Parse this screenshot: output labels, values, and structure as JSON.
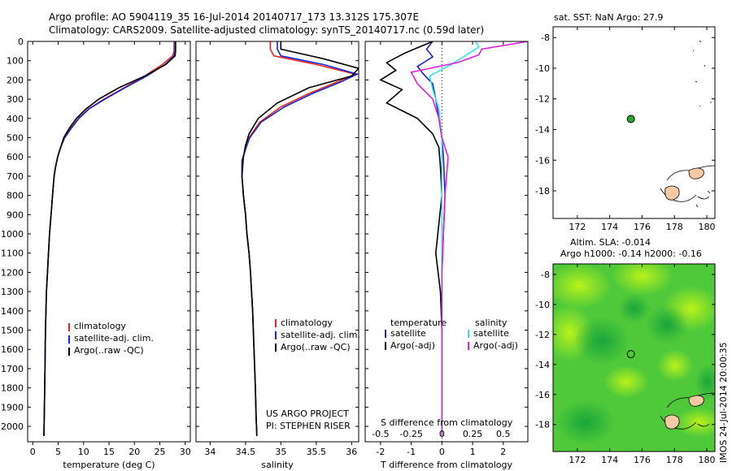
{
  "header": {
    "line1": "Argo profile: AO 5904119_35 16-Jul-2014 20140717_173 13.312S 175.307E",
    "line2": "Climatology: CARS2009. Satellite-adjusted climatology: synTS_20140717.nc (0.59d later)"
  },
  "colors": {
    "climatology": "#e8271e",
    "satellite": "#1426d8",
    "argo": "#000000",
    "sal_satellite": "#33e6ea",
    "sal_argo": "#e020e0",
    "land": "#f6c8a4",
    "map_marker": "#2aa52a"
  },
  "credits": {
    "project": "US ARGO PROJECT",
    "pi": "PI: STEPHEN RISER"
  },
  "timestamp": "IMOS 24-Jul-2014 20:00:35",
  "maps": {
    "sst_title": "sat. SST: NaN Argo: 27.9",
    "sla_title1": "Altim. SLA: -0.014",
    "sla_title2": "Argo h1000: -0.14 h2000: -0.16",
    "x_ticks": [
      "172",
      "174",
      "176",
      "178",
      "180"
    ],
    "y_ticks": [
      "-8",
      "-10",
      "-12",
      "-14",
      "-16",
      "-18"
    ],
    "argo_position": {
      "lon": 175.307,
      "lat": -13.312
    }
  },
  "chart_data": [
    {
      "type": "line",
      "panel": "temperature",
      "xlabel": "temperature (deg C)",
      "ylabel": "",
      "xlim": [
        -1,
        31
      ],
      "ylim": [
        2080,
        0
      ],
      "x_ticks": [
        "0",
        "5",
        "10",
        "15",
        "20",
        "25",
        "30"
      ],
      "y_ticks": [
        "0",
        "100",
        "200",
        "300",
        "400",
        "500",
        "600",
        "700",
        "800",
        "900",
        "1000",
        "1100",
        "1200",
        "1300",
        "1400",
        "1500",
        "1600",
        "1700",
        "1800",
        "1900",
        "2000"
      ],
      "legend": [
        "climatology",
        "satellite-adj. clim.",
        "Argo(..raw -QC)"
      ],
      "series": [
        {
          "name": "climatology",
          "x": [
            27.8,
            27.8,
            27.5,
            25.5,
            22,
            18,
            14,
            11,
            9,
            7.5,
            6.2,
            5.5,
            4.9,
            4.5,
            4.2,
            3.9,
            3.6,
            3.3,
            3.1,
            2.9,
            2.7,
            2.6,
            2.5,
            2.4,
            2.3,
            2.2
          ],
          "y": [
            0,
            50,
            75,
            120,
            180,
            240,
            300,
            350,
            400,
            450,
            500,
            550,
            600,
            650,
            700,
            800,
            900,
            1000,
            1100,
            1200,
            1300,
            1400,
            1500,
            1700,
            1900,
            2050
          ]
        },
        {
          "name": "satellite-adj. clim.",
          "x": [
            28.0,
            28.0,
            27.8,
            26,
            22.4,
            18.2,
            14.2,
            11.1,
            9.1,
            7.6,
            6.3,
            5.5,
            4.9,
            4.5,
            4.2,
            3.9,
            3.6,
            3.3,
            3.1,
            2.9,
            2.7,
            2.6,
            2.5,
            2.4,
            2.3,
            2.2
          ],
          "y": [
            0,
            50,
            75,
            120,
            180,
            240,
            300,
            350,
            400,
            450,
            500,
            550,
            600,
            650,
            700,
            800,
            900,
            1000,
            1100,
            1200,
            1300,
            1400,
            1500,
            1700,
            1900,
            2050
          ]
        },
        {
          "name": "Argo(..raw -QC)",
          "x": [
            28.1,
            28.1,
            28,
            26.2,
            22,
            17,
            13,
            10.5,
            8.6,
            7.2,
            6.1,
            5.5,
            4.9,
            4.5,
            4.2,
            3.9,
            3.6,
            3.3,
            3.1,
            2.9,
            2.7,
            2.6,
            2.5,
            2.4,
            2.3,
            2.2
          ],
          "y": [
            0,
            50,
            75,
            120,
            180,
            240,
            300,
            350,
            400,
            450,
            500,
            550,
            600,
            650,
            700,
            800,
            900,
            1000,
            1100,
            1200,
            1300,
            1400,
            1500,
            1700,
            1900,
            2050
          ]
        }
      ]
    },
    {
      "type": "line",
      "panel": "salinity",
      "xlabel": "salinity",
      "xlim": [
        33.8,
        36.1
      ],
      "ylim": [
        2080,
        0
      ],
      "x_ticks": [
        "34",
        "34.5",
        "35",
        "35.5",
        "36"
      ],
      "legend": [
        "climatology",
        "satellite-adj. clim.",
        "Argo(..raw -QC)"
      ],
      "series": [
        {
          "name": "climatology",
          "x": [
            34.85,
            34.85,
            34.9,
            35.5,
            36.05,
            35.8,
            35.4,
            35.0,
            34.7,
            34.55,
            34.5,
            34.45,
            34.45,
            34.47,
            34.5,
            34.52,
            34.55,
            34.57,
            34.6,
            34.62,
            34.64,
            34.65,
            34.66
          ],
          "y": [
            0,
            40,
            75,
            120,
            170,
            210,
            270,
            340,
            420,
            500,
            560,
            620,
            700,
            800,
            900,
            1000,
            1100,
            1200,
            1400,
            1600,
            1800,
            1950,
            2050
          ]
        },
        {
          "name": "satellite-adj. clim.",
          "x": [
            34.95,
            34.95,
            35.0,
            35.6,
            36.08,
            35.85,
            35.45,
            35.05,
            34.72,
            34.56,
            34.5,
            34.45,
            34.45,
            34.47,
            34.5,
            34.52,
            34.55,
            34.57,
            34.6,
            34.62,
            34.64,
            34.65,
            34.66
          ],
          "y": [
            0,
            40,
            75,
            120,
            170,
            210,
            270,
            340,
            420,
            500,
            560,
            620,
            700,
            800,
            900,
            1000,
            1100,
            1200,
            1400,
            1600,
            1800,
            1950,
            2050
          ]
        },
        {
          "name": "Argo(..raw -QC)",
          "x": [
            35.0,
            35.0,
            35.6,
            36.1,
            36.0,
            35.4,
            34.95,
            34.68,
            34.55,
            34.5,
            34.47,
            34.45,
            34.47,
            34.5,
            34.52,
            34.55,
            34.57,
            34.6,
            34.62,
            34.64,
            34.65,
            34.66
          ],
          "y": [
            0,
            40,
            90,
            140,
            180,
            240,
            320,
            400,
            480,
            540,
            600,
            700,
            800,
            900,
            1000,
            1100,
            1200,
            1400,
            1600,
            1800,
            1950,
            2050
          ]
        }
      ]
    },
    {
      "type": "line",
      "panel": "difference",
      "xlabel": "T difference from climatology",
      "xlabel_top": "S difference from climatology",
      "xlim": [
        -2.5,
        2.8
      ],
      "ylim": [
        2080,
        0
      ],
      "x_ticks": [
        "-2",
        "-1",
        "0",
        "1",
        "2"
      ],
      "x_ticks_top": [
        "-0.5",
        "-0.25",
        "0",
        "0.25",
        "0.5"
      ],
      "legend_groups": [
        "temperature",
        "salinity"
      ],
      "legend": [
        "satellite",
        "Argo(-adj)",
        "satellite",
        "Argo(-adj)"
      ],
      "series": [
        {
          "name": "satellite",
          "group": "temperature",
          "x": [
            -0.3,
            -0.5,
            -0.3,
            -0.8,
            -0.6,
            -0.3,
            -0.2,
            -0.1,
            0,
            0.05,
            0.1,
            0.05,
            0,
            0,
            0,
            0
          ],
          "y": [
            0,
            40,
            80,
            130,
            170,
            220,
            300,
            400,
            500,
            600,
            800,
            1000,
            1200,
            1500,
            1800,
            2050
          ]
        },
        {
          "name": "Argo(-adj)",
          "group": "temperature",
          "x": [
            -0.3,
            -1.2,
            -1.8,
            -1.5,
            -2.0,
            -1.3,
            -1.8,
            -0.8,
            -0.3,
            -0.1,
            -0.05,
            0,
            -0.2,
            -0.05,
            0,
            0,
            0
          ],
          "y": [
            0,
            60,
            110,
            150,
            200,
            250,
            320,
            400,
            480,
            550,
            650,
            800,
            1100,
            1300,
            1500,
            1800,
            2050
          ]
        },
        {
          "name": "satellite",
          "group": "salinity",
          "x": [
            1.1,
            1.2,
            0.9,
            0.3,
            -0.4,
            -0.3,
            -0.1,
            0,
            0,
            0,
            0,
            0
          ],
          "y": [
            0,
            30,
            60,
            120,
            180,
            250,
            350,
            500,
            700,
            1000,
            1500,
            2050
          ]
        },
        {
          "name": "Argo(-adj)",
          "group": "salinity",
          "x": [
            2.8,
            1.3,
            1.2,
            0.5,
            -1.0,
            -0.8,
            -0.3,
            -0.1,
            0,
            0.2,
            0.1,
            0,
            0
          ],
          "y": [
            0,
            40,
            70,
            110,
            160,
            220,
            300,
            400,
            500,
            600,
            800,
            1200,
            2050
          ]
        }
      ]
    }
  ]
}
